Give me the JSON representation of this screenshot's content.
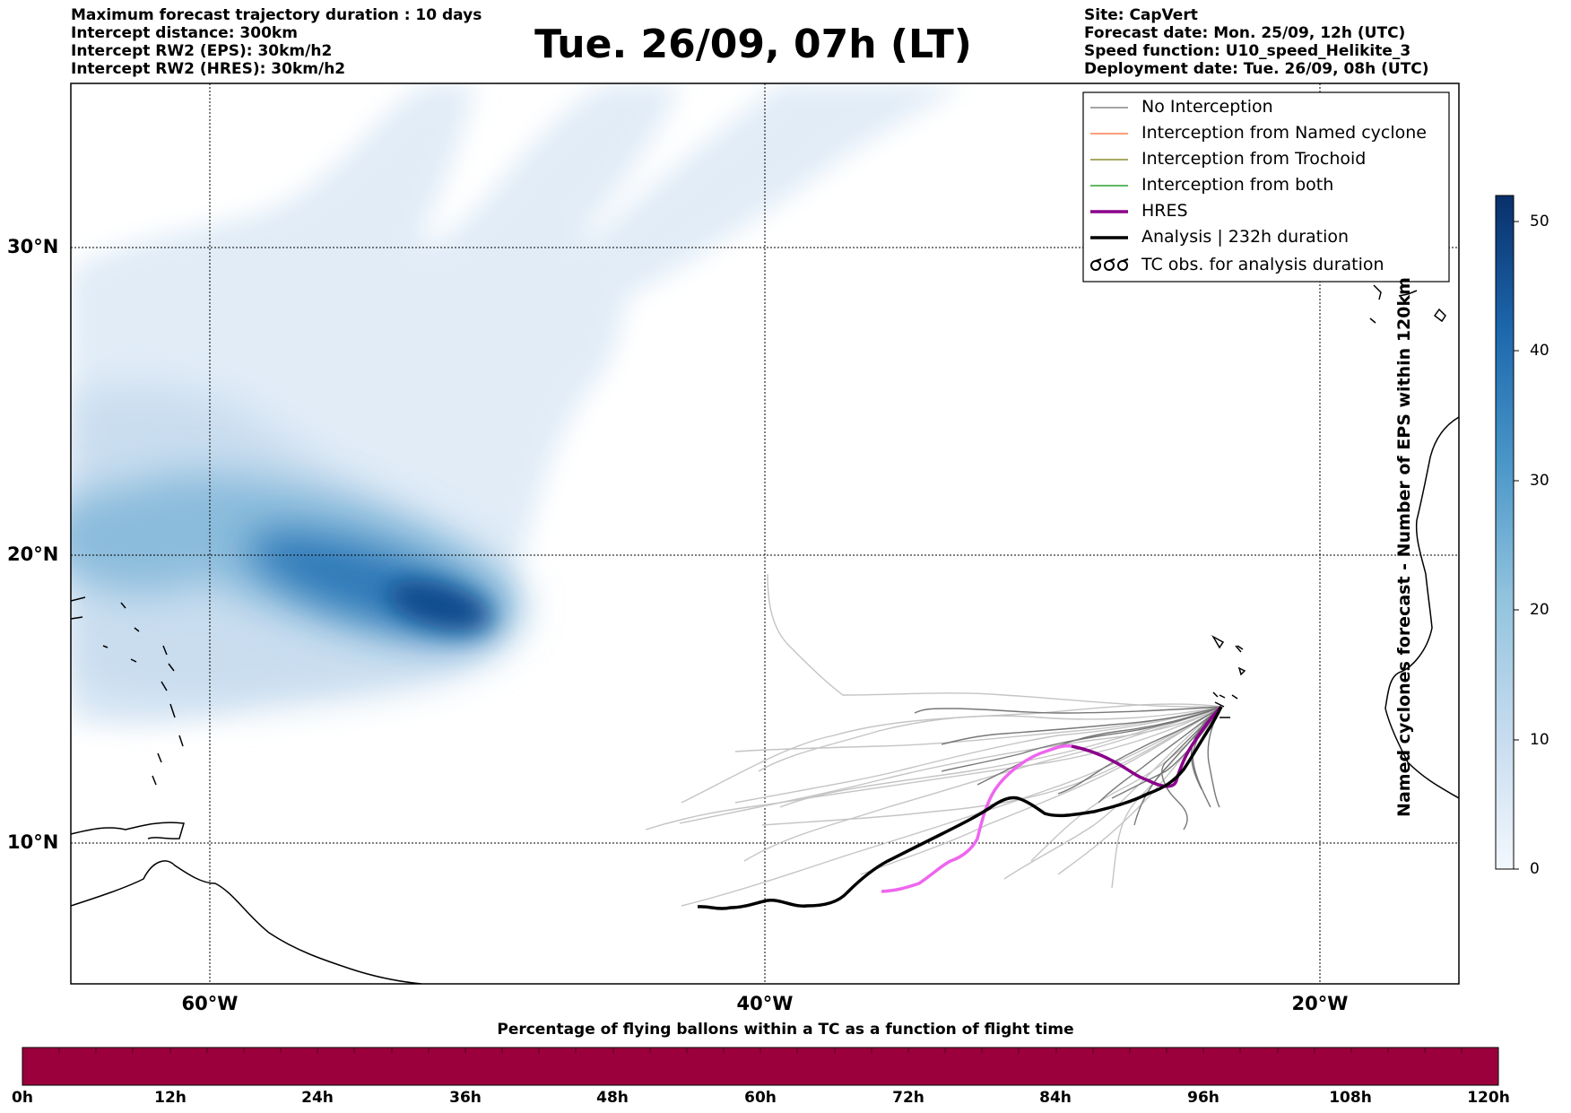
{
  "header": {
    "left_lines": [
      "Maximum forecast trajectory duration : 10 days",
      "Intercept distance: 300km",
      "Intercept RW2 (EPS):  30km/h2",
      "Intercept RW2 (HRES): 30km/h2"
    ],
    "title": "Tue. 26/09, 07h (LT)",
    "right_lines": [
      "Site: CapVert",
      "Forecast date: Mon. 25/09, 12h (UTC)",
      "Speed function: U10_speed_Helikite_3",
      "Deployment date: Tue. 26/09, 08h (UTC)"
    ]
  },
  "map": {
    "lat_labels": [
      "30°N",
      "20°N",
      "10°N"
    ],
    "lon_labels": [
      "60°W",
      "40°W",
      "20°W"
    ],
    "legend": [
      {
        "label": "No Interception",
        "color": "#888888"
      },
      {
        "label": "Interception from Named cyclone",
        "color": "#ff7f50"
      },
      {
        "label": "Interception from Trochoid",
        "color": "#8b8b2e"
      },
      {
        "label": "Interception from both",
        "color": "#2ca02c"
      },
      {
        "label": "HRES",
        "color": "#8b008b"
      },
      {
        "label": "Analysis | 232h duration",
        "color": "#000000"
      },
      {
        "label": "TC obs. for analysis duration",
        "icon": "tc-symbol-icon"
      }
    ]
  },
  "colorbar": {
    "title": "Named cyclones forecast - Number of EPS within 120km",
    "ticks": [
      "0",
      "10",
      "20",
      "30",
      "40",
      "50"
    ]
  },
  "timebar": {
    "title": "Percentage of flying ballons within a TC as a function of flight time",
    "color": "#9b003d",
    "ticks": [
      "0h",
      "12h",
      "24h",
      "36h",
      "48h",
      "60h",
      "72h",
      "84h",
      "96h",
      "108h",
      "120h"
    ]
  }
}
